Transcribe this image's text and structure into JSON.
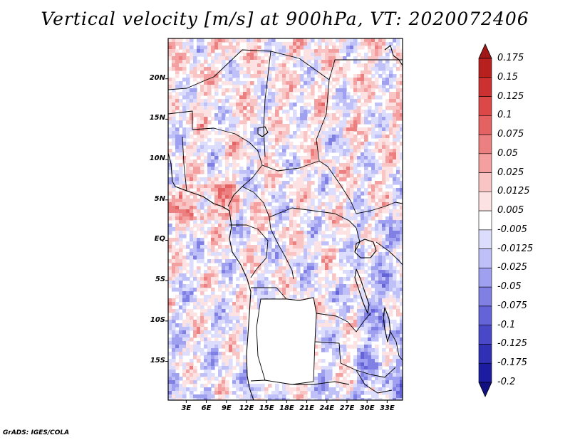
{
  "title": "Vertical velocity [m/s] at 900hPa, VT: 2020072406",
  "footer": "GrADS: IGES/COLA",
  "lat_labels": [
    "20N",
    "15N",
    "10N",
    "5N",
    "EQ",
    "5S",
    "10S",
    "15S"
  ],
  "lat_values": [
    20,
    15,
    10,
    5,
    0,
    -5,
    -10,
    -15
  ],
  "lon_labels": [
    "3E",
    "6E",
    "9E",
    "12E",
    "15E",
    "18E",
    "21E",
    "24E",
    "27E",
    "30E",
    "33E"
  ],
  "lon_values": [
    3,
    6,
    9,
    12,
    15,
    18,
    21,
    24,
    27,
    30,
    33
  ],
  "lon_range": [
    0.3,
    35.3
  ],
  "lat_range": [
    -19.8,
    25
  ],
  "colorbar": {
    "labels": [
      "0.175",
      "0.15",
      "0.125",
      "0.1",
      "0.075",
      "0.05",
      "0.025",
      "0.0125",
      "0.005",
      "-0.005",
      "-0.0125",
      "-0.025",
      "-0.05",
      "-0.075",
      "-0.1",
      "-0.125",
      "-0.175",
      "-0.2"
    ],
    "colors": [
      "#a01818",
      "#b82020",
      "#cc3030",
      "#dc4848",
      "#e46262",
      "#ec8080",
      "#f4a0a0",
      "#f8c4c4",
      "#fce2e2",
      "#ffffff",
      "#dcdcfc",
      "#c0c0f8",
      "#a0a0f0",
      "#8080e4",
      "#6464d8",
      "#4848c8",
      "#3030b4",
      "#1c1ca0",
      "#101080"
    ]
  }
}
